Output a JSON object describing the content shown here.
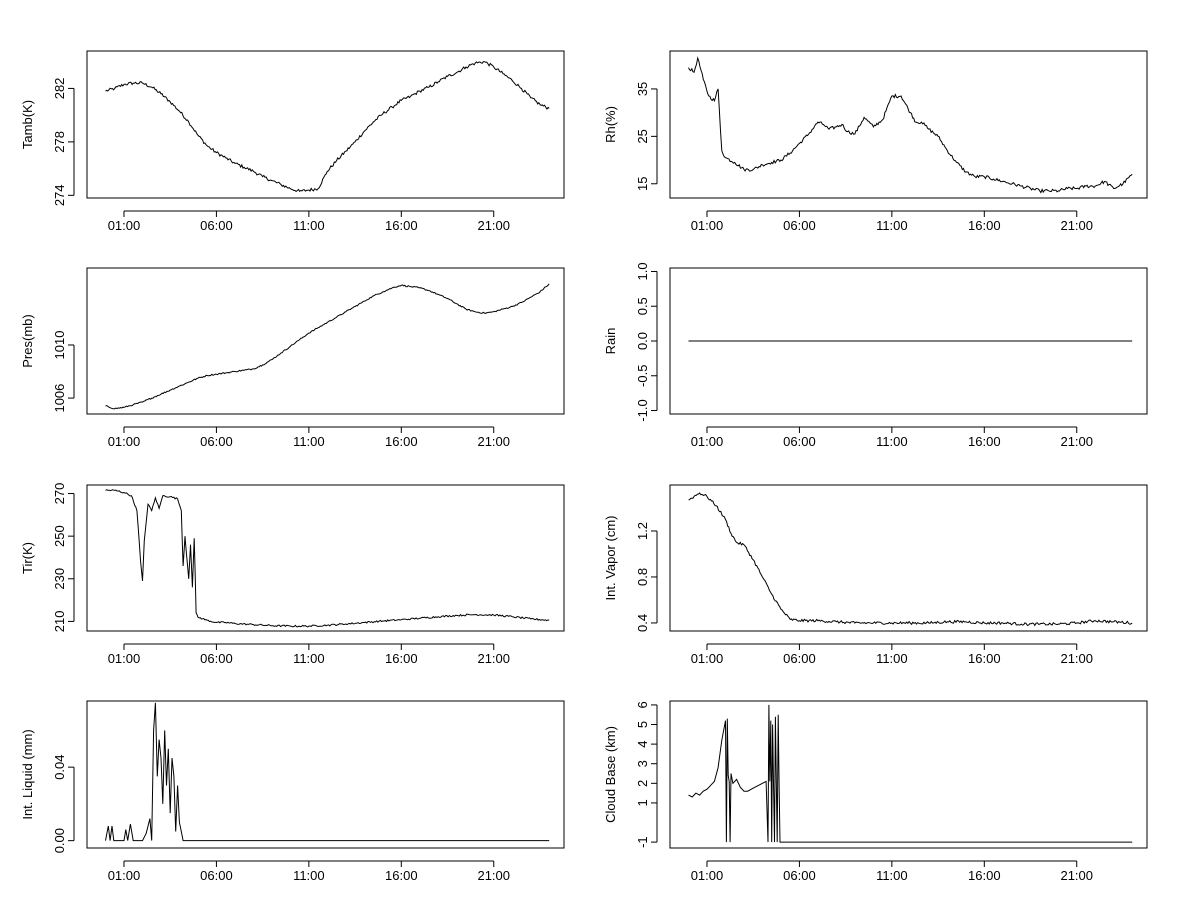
{
  "chart_data": [
    {
      "type": "line",
      "ylabel": "Tamb(K)",
      "xlabel": "",
      "xlim": [
        -1,
        24.8
      ],
      "ylim": [
        273.8,
        284.8
      ],
      "xticks": [
        1,
        6,
        11,
        16,
        21
      ],
      "xtick_labels": [
        "01:00",
        "06:00",
        "11:00",
        "16:00",
        "21:00"
      ],
      "yticks": [
        274,
        278,
        282
      ],
      "ytick_labels": [
        "274",
        "278",
        "282"
      ],
      "noise": 0.12,
      "series": [
        {
          "name": "Tamb",
          "x": [
            0,
            0.5,
            1,
            1.5,
            2,
            2.5,
            3,
            3.5,
            4,
            4.5,
            5,
            5.5,
            6,
            6.5,
            7,
            7.5,
            8,
            8.5,
            9,
            9.5,
            10,
            10.5,
            11,
            11.5,
            12,
            12.5,
            13,
            13.5,
            14,
            14.5,
            15,
            15.5,
            16,
            16.5,
            17,
            17.5,
            18,
            18.5,
            19,
            19.5,
            20,
            20.5,
            21,
            21.5,
            22,
            22.5,
            23,
            23.5,
            24
          ],
          "values": [
            281.8,
            282.0,
            282.3,
            282.4,
            282.4,
            282.1,
            281.6,
            281.0,
            280.3,
            279.5,
            278.5,
            277.7,
            277.2,
            276.8,
            276.4,
            276.1,
            275.8,
            275.4,
            275.1,
            274.8,
            274.5,
            274.3,
            274.4,
            274.5,
            275.8,
            276.6,
            277.3,
            278.0,
            278.8,
            279.5,
            280.1,
            280.6,
            281.1,
            281.4,
            281.8,
            282.1,
            282.5,
            282.9,
            283.2,
            283.6,
            283.9,
            284.0,
            283.6,
            283.1,
            282.6,
            282.0,
            281.3,
            280.8,
            280.5
          ]
        }
      ]
    },
    {
      "type": "line",
      "ylabel": "Rh(%)",
      "xlabel": "",
      "xlim": [
        -1,
        24.8
      ],
      "ylim": [
        12,
        43
      ],
      "xticks": [
        1,
        6,
        11,
        16,
        21
      ],
      "xtick_labels": [
        "01:00",
        "06:00",
        "11:00",
        "16:00",
        "21:00"
      ],
      "yticks": [
        15,
        25,
        35
      ],
      "ytick_labels": [
        "15",
        "25",
        "35"
      ],
      "noise": 0.35,
      "series": [
        {
          "name": "Rh",
          "x": [
            0,
            0.3,
            0.5,
            0.8,
            1.1,
            1.4,
            1.6,
            1.8,
            2,
            2.5,
            3,
            3.5,
            4,
            4.5,
            5,
            5.5,
            6,
            6.5,
            7,
            7.3,
            7.6,
            8,
            8.3,
            8.6,
            9,
            9.5,
            10,
            10.5,
            11,
            11.5,
            12,
            12.3,
            12.6,
            13,
            13.5,
            14,
            14.5,
            15,
            15.5,
            16,
            16.5,
            17,
            17.5,
            18,
            18.5,
            19,
            19.5,
            20,
            20.5,
            21,
            21.5,
            22,
            22.5,
            23,
            23.5,
            24
          ],
          "values": [
            39.5,
            38.5,
            41.5,
            37.0,
            33.5,
            32.5,
            35.0,
            22.0,
            20.5,
            19.5,
            18.0,
            18.0,
            19.0,
            19.5,
            20.0,
            21.5,
            23.5,
            25.5,
            28.0,
            27.5,
            26.5,
            27.0,
            27.5,
            26.0,
            25.5,
            29.0,
            27.0,
            28.5,
            33.5,
            33.5,
            30.0,
            28.0,
            28.0,
            26.5,
            25.0,
            22.0,
            19.5,
            17.5,
            16.5,
            16.5,
            16.0,
            15.5,
            15.0,
            14.5,
            14.0,
            13.5,
            13.5,
            13.5,
            14.0,
            14.0,
            14.5,
            14.5,
            15.5,
            14.0,
            15.0,
            17.0
          ]
        }
      ]
    },
    {
      "type": "line",
      "ylabel": "Pres(mb)",
      "xlabel": "",
      "xlim": [
        -1,
        24.8
      ],
      "ylim": [
        1004.8,
        1015.8
      ],
      "xticks": [
        1,
        6,
        11,
        16,
        21
      ],
      "xtick_labels": [
        "01:00",
        "06:00",
        "11:00",
        "16:00",
        "21:00"
      ],
      "yticks": [
        1006,
        1010
      ],
      "ytick_labels": [
        "1006",
        "1010"
      ],
      "noise": 0.05,
      "series": [
        {
          "name": "Pres",
          "x": [
            0,
            0.5,
            1,
            1.5,
            2,
            2.5,
            3,
            3.5,
            4,
            4.5,
            5,
            5.5,
            6,
            6.5,
            7,
            7.5,
            8,
            8.5,
            9,
            9.5,
            10,
            10.5,
            11,
            11.5,
            12,
            12.5,
            13,
            13.5,
            14,
            14.5,
            15,
            15.5,
            16,
            16.5,
            17,
            17.5,
            18,
            18.5,
            19,
            19.5,
            20,
            20.5,
            21,
            21.5,
            22,
            22.5,
            23,
            23.5,
            24
          ],
          "values": [
            1005.4,
            1005.2,
            1005.3,
            1005.5,
            1005.7,
            1006.0,
            1006.3,
            1006.6,
            1006.9,
            1007.2,
            1007.5,
            1007.7,
            1007.8,
            1007.9,
            1008.0,
            1008.1,
            1008.2,
            1008.5,
            1008.9,
            1009.4,
            1009.9,
            1010.4,
            1010.9,
            1011.3,
            1011.7,
            1012.1,
            1012.5,
            1012.9,
            1013.3,
            1013.7,
            1014.0,
            1014.3,
            1014.5,
            1014.4,
            1014.3,
            1014.1,
            1013.8,
            1013.5,
            1013.1,
            1012.7,
            1012.5,
            1012.4,
            1012.5,
            1012.7,
            1012.9,
            1013.2,
            1013.6,
            1014.0,
            1014.6
          ]
        }
      ]
    },
    {
      "type": "line",
      "ylabel": "Rain",
      "xlabel": "",
      "xlim": [
        -1,
        24.8
      ],
      "ylim": [
        -1.05,
        1.05
      ],
      "xticks": [
        1,
        6,
        11,
        16,
        21
      ],
      "xtick_labels": [
        "01:00",
        "06:00",
        "11:00",
        "16:00",
        "21:00"
      ],
      "yticks": [
        -1.0,
        -0.5,
        0.0,
        0.5,
        1.0
      ],
      "ytick_labels": [
        "-1.0",
        "-0.5",
        "0.0",
        "0.5",
        "1.0"
      ],
      "noise": 0,
      "series": [
        {
          "name": "Rain",
          "x": [
            0,
            24
          ],
          "values": [
            0,
            0
          ]
        }
      ]
    },
    {
      "type": "line",
      "ylabel": "Tir(K)",
      "xlabel": "",
      "xlim": [
        -1,
        24.8
      ],
      "ylim": [
        205.5,
        274
      ],
      "xticks": [
        1,
        6,
        11,
        16,
        21
      ],
      "xtick_labels": [
        "01:00",
        "06:00",
        "11:00",
        "16:00",
        "21:00"
      ],
      "yticks": [
        210,
        230,
        250,
        270
      ],
      "ytick_labels": [
        "210",
        "230",
        "250",
        "270"
      ],
      "noise": 0.4,
      "series": [
        {
          "name": "Tir",
          "x": [
            0,
            0.5,
            1,
            1.4,
            1.7,
            1.9,
            2.0,
            2.1,
            2.3,
            2.5,
            2.7,
            2.9,
            3.1,
            3.5,
            3.9,
            4.1,
            4.2,
            4.3,
            4.4,
            4.5,
            4.6,
            4.7,
            4.8,
            4.9,
            5.0,
            5.5,
            6.0,
            6.5,
            7,
            8,
            9,
            10,
            11,
            12,
            13,
            14,
            15,
            16,
            17,
            18,
            19,
            20,
            21,
            22,
            23,
            24
          ],
          "values": [
            271.5,
            271.5,
            270.5,
            269.0,
            262.0,
            238.0,
            229.0,
            248.0,
            265.0,
            262.0,
            268.0,
            263.0,
            269.0,
            268.5,
            267.5,
            262.0,
            236.0,
            250.0,
            240.0,
            230.0,
            246.0,
            226.0,
            249.0,
            214.0,
            212.0,
            210.5,
            209.5,
            209.5,
            209.0,
            208.5,
            208.0,
            207.8,
            207.8,
            208.2,
            208.8,
            209.5,
            210.2,
            210.8,
            211.5,
            212.2,
            212.8,
            213.2,
            213.0,
            212.2,
            211.2,
            210.5
          ]
        }
      ]
    },
    {
      "type": "line",
      "ylabel": "Int. Vapor (cm)",
      "xlabel": "",
      "xlim": [
        -1,
        24.8
      ],
      "ylim": [
        0.33,
        1.6
      ],
      "xticks": [
        1,
        6,
        11,
        16,
        21
      ],
      "xtick_labels": [
        "01:00",
        "06:00",
        "11:00",
        "16:00",
        "21:00"
      ],
      "yticks": [
        0.4,
        0.8,
        1.2
      ],
      "ytick_labels": [
        "0.4",
        "0.8",
        "1.2"
      ],
      "noise": 0.012,
      "series": [
        {
          "name": "Int. Vapor",
          "x": [
            0,
            0.3,
            0.6,
            1,
            1.5,
            2,
            2.3,
            2.6,
            3,
            3.5,
            4,
            4.5,
            5,
            5.5,
            6,
            7,
            8,
            9,
            10,
            11,
            12,
            13,
            14,
            15,
            16,
            17,
            18,
            19,
            20,
            21,
            22,
            23,
            24
          ],
          "values": [
            1.47,
            1.5,
            1.53,
            1.5,
            1.42,
            1.3,
            1.18,
            1.1,
            1.08,
            0.95,
            0.8,
            0.65,
            0.52,
            0.43,
            0.42,
            0.42,
            0.41,
            0.4,
            0.4,
            0.4,
            0.4,
            0.4,
            0.41,
            0.41,
            0.4,
            0.4,
            0.39,
            0.39,
            0.39,
            0.4,
            0.42,
            0.41,
            0.4
          ]
        }
      ]
    },
    {
      "type": "line",
      "ylabel": "Int. Liquid (mm)",
      "xlabel": "",
      "xlim": [
        -1,
        24.8
      ],
      "ylim": [
        -0.004,
        0.076
      ],
      "xticks": [
        1,
        6,
        11,
        16,
        21
      ],
      "xtick_labels": [
        "01:00",
        "06:00",
        "11:00",
        "16:00",
        "21:00"
      ],
      "yticks": [
        0.0,
        0.04
      ],
      "ytick_labels": [
        "0.00",
        "0.04"
      ],
      "noise": 0,
      "series": [
        {
          "name": "Int. Liquid",
          "x": [
            0,
            0.15,
            0.25,
            0.35,
            0.45,
            1.0,
            1.1,
            1.2,
            1.35,
            1.5,
            2.0,
            2.2,
            2.4,
            2.5,
            2.6,
            2.7,
            2.8,
            2.9,
            3.0,
            3.1,
            3.2,
            3.3,
            3.4,
            3.5,
            3.6,
            3.7,
            3.8,
            3.9,
            4.0,
            4.1,
            4.2,
            5,
            10,
            15,
            20,
            24
          ],
          "values": [
            0,
            0.008,
            0,
            0.008,
            0,
            0,
            0.006,
            0,
            0.009,
            0,
            0,
            0.004,
            0.012,
            0,
            0.06,
            0.075,
            0.035,
            0.055,
            0.045,
            0.02,
            0.06,
            0.03,
            0.05,
            0.015,
            0.045,
            0.035,
            0.005,
            0.03,
            0.01,
            0.005,
            0,
            0,
            0,
            0,
            0,
            0
          ]
        }
      ]
    },
    {
      "type": "line",
      "ylabel": "Cloud Base (km)",
      "xlabel": "",
      "xlim": [
        -1,
        24.8
      ],
      "ylim": [
        -1.3,
        6.2
      ],
      "xticks": [
        1,
        6,
        11,
        16,
        21
      ],
      "xtick_labels": [
        "01:00",
        "06:00",
        "11:00",
        "16:00",
        "21:00"
      ],
      "yticks": [
        -1,
        1,
        2,
        3,
        4,
        5,
        6
      ],
      "ytick_labels": [
        "-1",
        "1",
        "2",
        "3",
        "4",
        "5",
        "6"
      ],
      "noise": 0,
      "series": [
        {
          "name": "Cloud Base",
          "x": [
            0,
            0.2,
            0.4,
            0.6,
            0.8,
            1.0,
            1.2,
            1.4,
            1.6,
            1.8,
            2.0,
            2.05,
            2.1,
            2.15,
            2.2,
            2.25,
            2.3,
            2.4,
            2.6,
            2.8,
            3.0,
            3.2,
            3.4,
            3.6,
            3.8,
            4.0,
            4.2,
            4.3,
            4.35,
            4.4,
            4.45,
            4.5,
            4.55,
            4.6,
            4.65,
            4.7,
            4.75,
            4.8,
            4.85,
            4.9,
            4.95,
            5.0,
            5.05,
            10,
            15,
            20,
            24
          ],
          "values": [
            1.4,
            1.3,
            1.5,
            1.4,
            1.6,
            1.7,
            1.9,
            2.1,
            2.8,
            4.2,
            5.2,
            -1,
            5.3,
            2.4,
            2.1,
            -1,
            2.5,
            2.0,
            2.2,
            1.8,
            1.6,
            1.6,
            1.7,
            1.8,
            1.9,
            2.0,
            2.1,
            -1,
            6.0,
            2.1,
            5.2,
            -1,
            5.0,
            2.0,
            -1,
            5.4,
            2.1,
            -1,
            5.5,
            1.9,
            -1,
            -1,
            -1,
            -1,
            -1,
            -1,
            -1
          ]
        }
      ]
    }
  ]
}
